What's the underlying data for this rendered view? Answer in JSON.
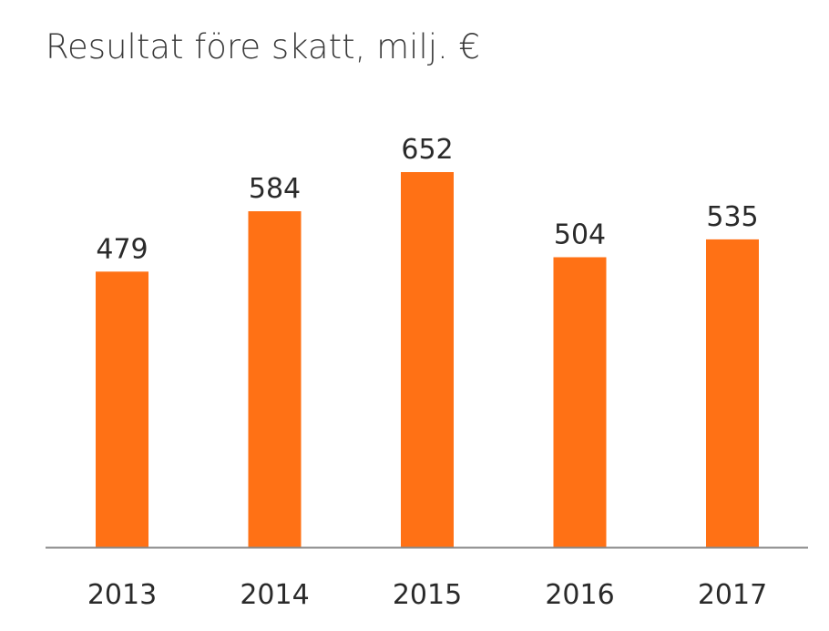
{
  "chart_data": {
    "type": "bar",
    "title": "Resultat före skatt, milj. €",
    "categories": [
      "2013",
      "2014",
      "2015",
      "2016",
      "2017"
    ],
    "values": [
      479,
      584,
      652,
      504,
      535
    ],
    "data_labels": [
      "479",
      "584",
      "652",
      "504",
      "535"
    ],
    "xlabel": "",
    "ylabel": "",
    "ylim": [
      0,
      652
    ],
    "grid": false,
    "legend": "none",
    "colors": {
      "bar": "#FF7115",
      "axis": "#8a8a8a"
    }
  }
}
